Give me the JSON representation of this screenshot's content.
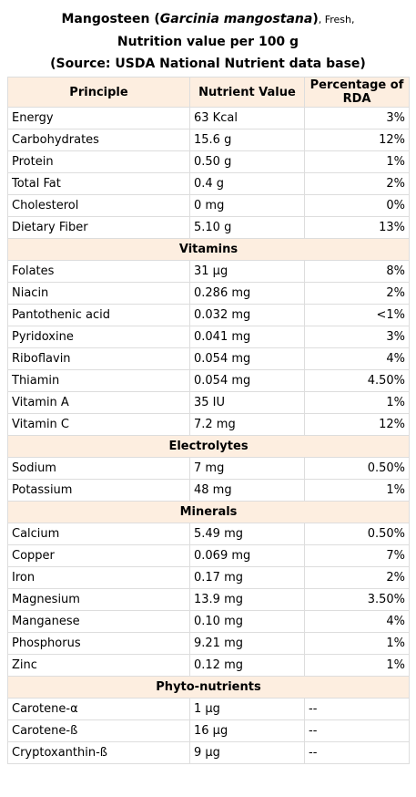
{
  "caption": {
    "name": "Mangosteen (",
    "species": "Garcinia mangostana",
    "close": ")",
    "state": ", Fresh,",
    "line2": "Nutrition value per 100 g",
    "line3": "(Source: USDA National Nutrient data base)"
  },
  "table": {
    "headers": [
      "Principle",
      "Nutrient Value",
      "Percentage of RDA"
    ],
    "groups": [
      {
        "rows": [
          [
            "Energy",
            "63 Kcal",
            "3%"
          ],
          [
            "Carbohydrates",
            "15.6 g",
            "12%"
          ],
          [
            "Protein",
            "0.50 g",
            "1%"
          ],
          [
            "Total Fat",
            "0.4 g",
            "2%"
          ],
          [
            "Cholesterol",
            "0 mg",
            "0%"
          ],
          [
            "Dietary Fiber",
            "5.10 g",
            "13%"
          ]
        ]
      },
      {
        "heading": "Vitamins",
        "rows": [
          [
            "Folates",
            "31 µg",
            "8%"
          ],
          [
            "Niacin",
            "0.286 mg",
            "2%"
          ],
          [
            "Pantothenic acid",
            "0.032 mg",
            "<1%"
          ],
          [
            "Pyridoxine",
            "0.041 mg",
            "3%"
          ],
          [
            "Riboflavin",
            "0.054 mg",
            "4%"
          ],
          [
            "Thiamin",
            "0.054 mg",
            "4.50%"
          ],
          [
            "Vitamin A",
            "35 IU",
            "1%"
          ],
          [
            "Vitamin C",
            "7.2 mg",
            "12%"
          ]
        ]
      },
      {
        "heading": "Electrolytes",
        "rows": [
          [
            "Sodium",
            "7 mg",
            "0.50%"
          ],
          [
            "Potassium",
            "48 mg",
            "1%"
          ]
        ]
      },
      {
        "heading": "Minerals",
        "rows": [
          [
            "Calcium",
            "5.49 mg",
            "0.50%"
          ],
          [
            "Copper",
            "0.069 mg",
            "7%"
          ],
          [
            "Iron",
            "0.17 mg",
            "2%"
          ],
          [
            "Magnesium",
            "13.9 mg",
            "3.50%"
          ],
          [
            "Manganese",
            "0.10 mg",
            "4%"
          ],
          [
            "Phosphorus",
            "9.21 mg",
            "1%"
          ],
          [
            "Zinc",
            "0.12 mg",
            "1%"
          ]
        ]
      },
      {
        "heading": "Phyto-nutrients",
        "rows": [
          [
            "Carotene-α",
            "1 µg",
            "--"
          ],
          [
            "Carotene-ß",
            "16 µg",
            "--"
          ],
          [
            "Cryptoxanthin-ß",
            "9 µg",
            "--"
          ]
        ]
      }
    ]
  }
}
